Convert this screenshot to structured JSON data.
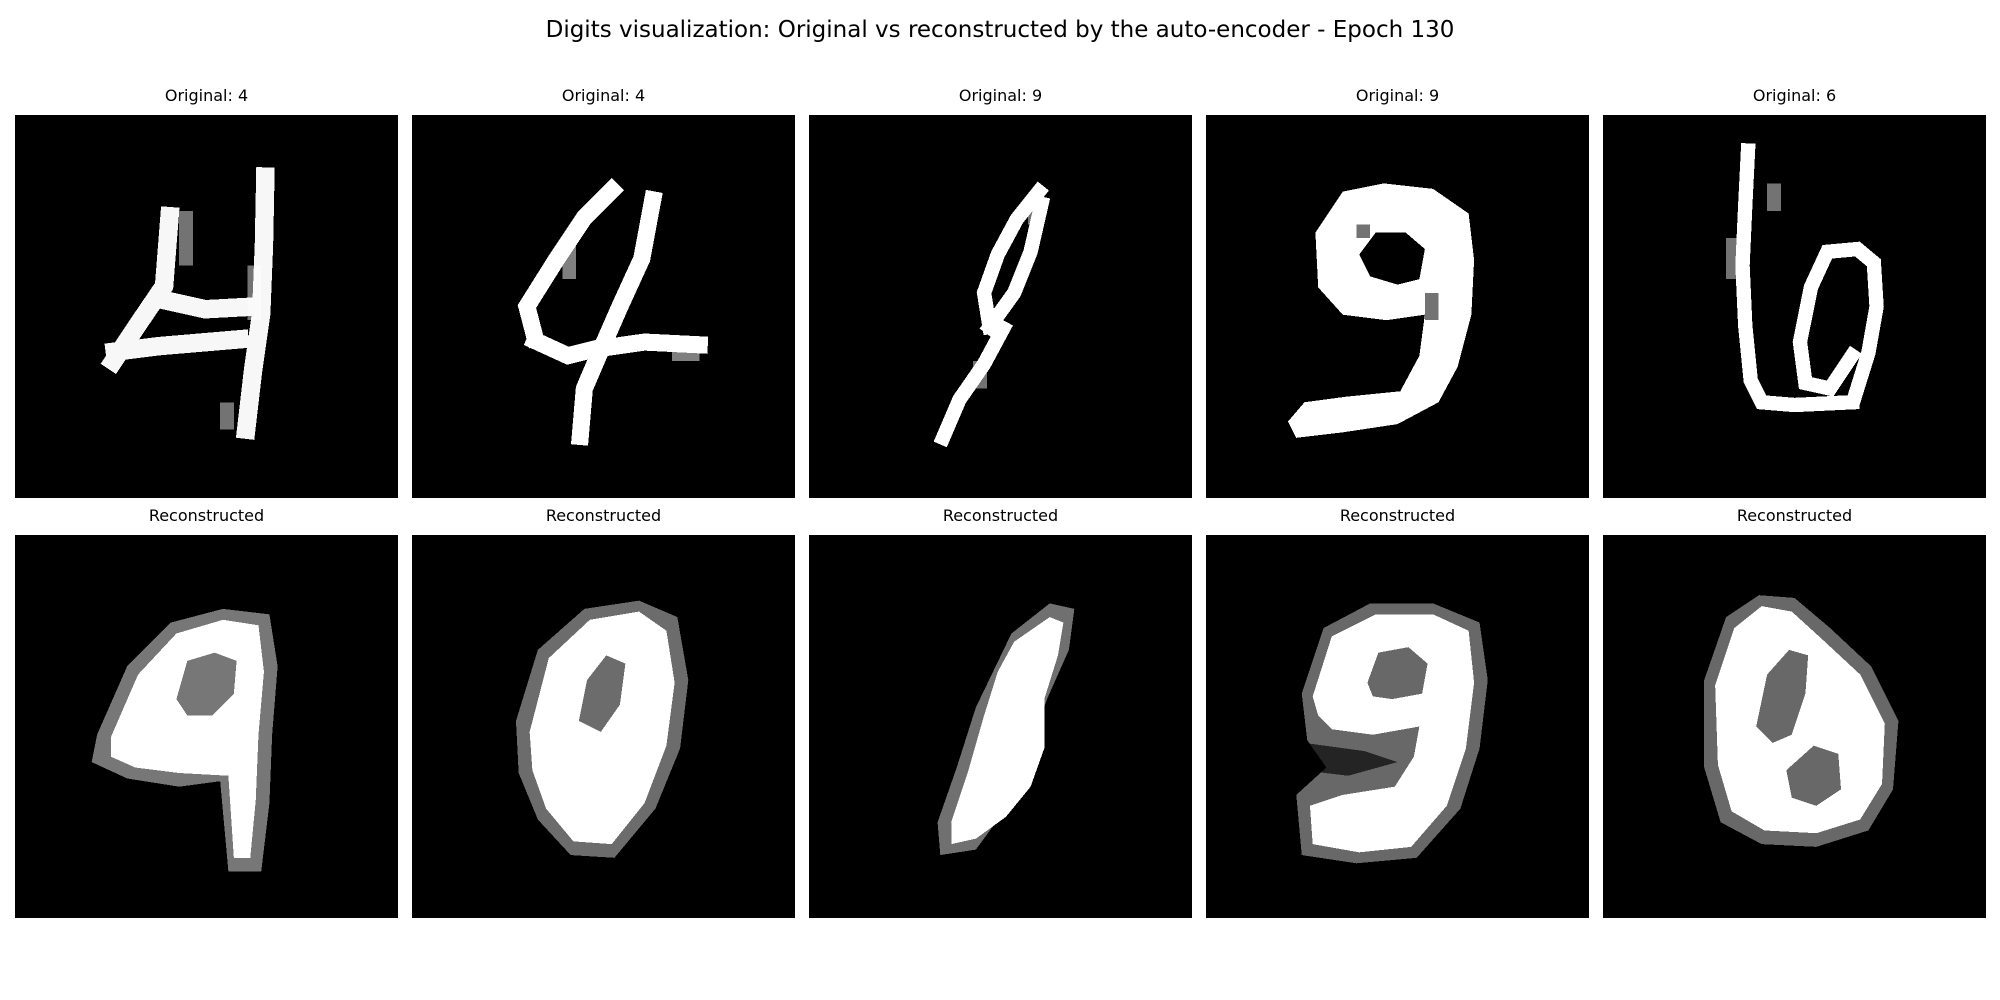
{
  "figure": {
    "title": "Digits visualization: Original vs reconstructed by the auto-encoder - Epoch 130"
  },
  "original": {
    "titles": [
      "Original: 4",
      "Original: 4",
      "Original: 9",
      "Original: 9",
      "Original: 6"
    ]
  },
  "reconstructed": {
    "titles": [
      "Reconstructed",
      "Reconstructed",
      "Reconstructed",
      "Reconstructed",
      "Reconstructed"
    ]
  },
  "colors": {
    "background": "#ffffff",
    "image_background": "#000000",
    "stroke": "#ffffff"
  }
}
